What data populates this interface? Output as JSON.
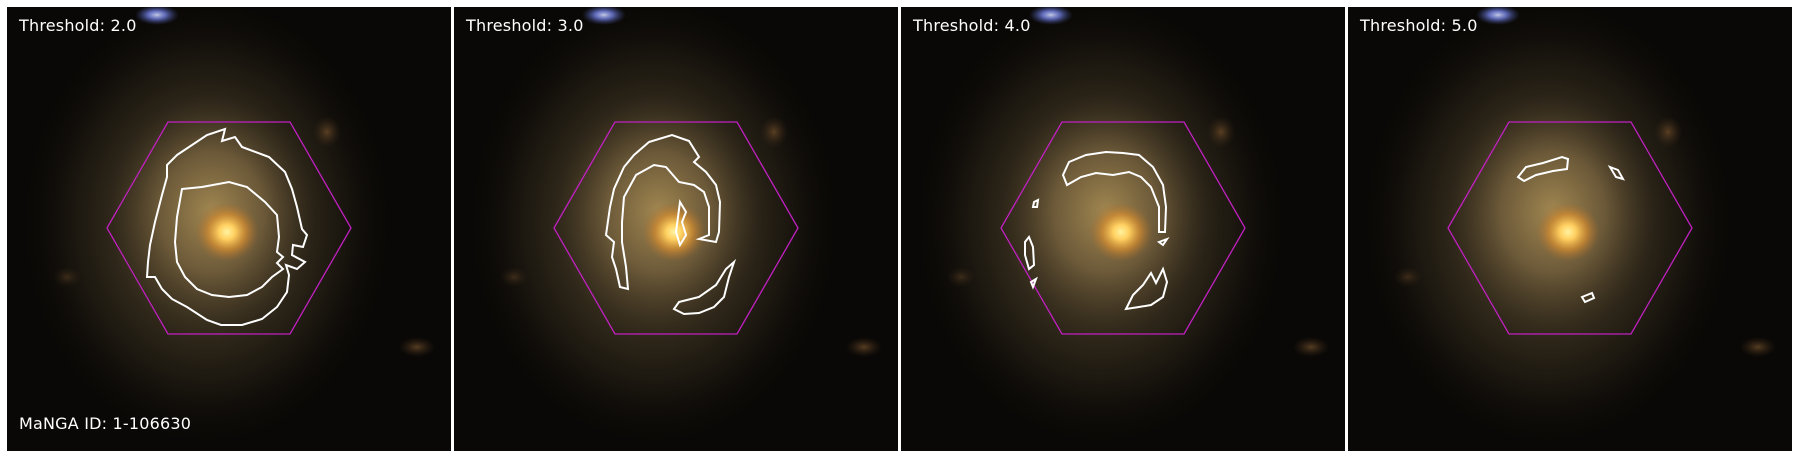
{
  "panels": [
    {
      "threshold_label": "Threshold: 2.0"
    },
    {
      "threshold_label": "Threshold: 3.0"
    },
    {
      "threshold_label": "Threshold: 4.0"
    },
    {
      "threshold_label": "Threshold: 5.0"
    }
  ],
  "galaxy_id_label": "MaNGA ID: 1-106630",
  "colors": {
    "hexagon": "#c020c0",
    "contour": "#ffffff",
    "galaxy_core": "#ffd060",
    "background": "#0a0806"
  },
  "image_content": "galaxy"
}
